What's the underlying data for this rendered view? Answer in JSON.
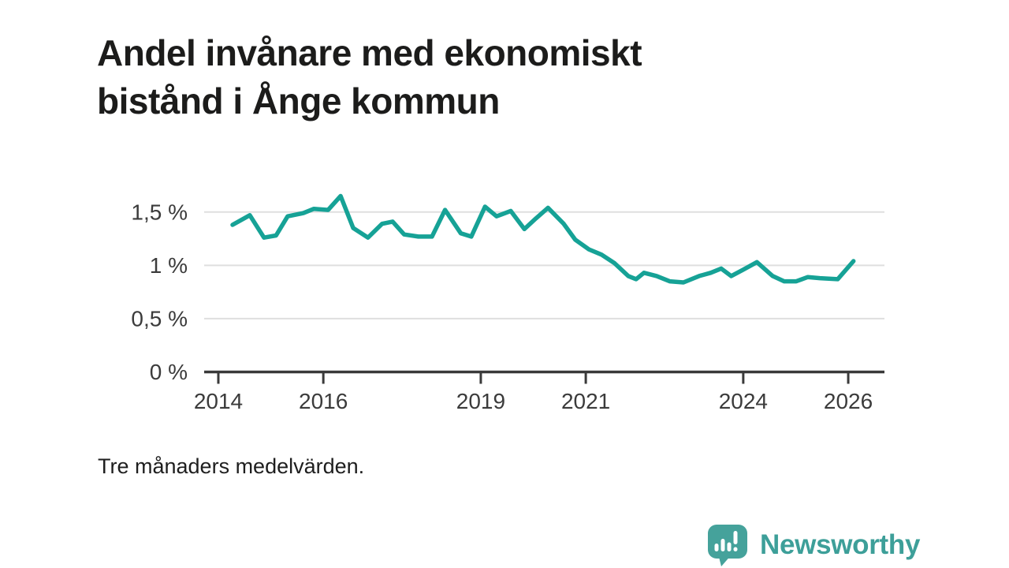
{
  "page": {
    "background": "#ffffff"
  },
  "header": {
    "title_lines": [
      "Andel invånare med ekonomiskt",
      "bistånd i Ånge kommun"
    ]
  },
  "footnote": "Tre månaders medelvärden.",
  "branding": {
    "name": "Newsworthy",
    "logo_icon": "newsworthy-speech-bubble-bar-chart-icon",
    "icon_color": "#45a29b",
    "text_color": "#3d9f99"
  },
  "colors": {
    "line": "#16a296",
    "grid": "#dfdfdf",
    "axis": "#3a3a3a",
    "tick_label": "#3b3b3b",
    "title": "#1c1c1b"
  },
  "chart_data": {
    "type": "line",
    "title": "Andel invånare med ekonomiskt bistånd i Ånge kommun",
    "note": "Tre månaders medelvärden.",
    "unit": "%",
    "grid": "horizontal",
    "legend": "none",
    "xlim": [
      2013.73,
      2026.69
    ],
    "ylim": [
      0,
      1.75
    ],
    "x_ticks": [
      {
        "year": 2014,
        "label": "2014"
      },
      {
        "year": 2016,
        "label": "2016"
      },
      {
        "year": 2019,
        "label": "2019"
      },
      {
        "year": 2021,
        "label": "2021"
      },
      {
        "year": 2024,
        "label": "2024"
      },
      {
        "year": 2026,
        "label": "2026"
      }
    ],
    "y_ticks": [
      {
        "value": 0,
        "label": "0 %"
      },
      {
        "value": 0.5,
        "label": "0,5 %"
      },
      {
        "value": 1,
        "label": "1 %"
      },
      {
        "value": 1.5,
        "label": "1,5 %"
      }
    ],
    "x": [
      2014.27,
      2014.6,
      2014.87,
      2015.1,
      2015.32,
      2015.62,
      2015.82,
      2016.09,
      2016.33,
      2016.57,
      2016.85,
      2017.12,
      2017.32,
      2017.54,
      2017.81,
      2018.07,
      2018.32,
      2018.62,
      2018.82,
      2019.08,
      2019.3,
      2019.57,
      2019.83,
      2020.05,
      2020.28,
      2020.58,
      2020.8,
      2021.06,
      2021.3,
      2021.55,
      2021.81,
      2021.96,
      2022.11,
      2022.35,
      2022.6,
      2022.86,
      2023.16,
      2023.38,
      2023.58,
      2023.77,
      2024.0,
      2024.26,
      2024.56,
      2024.78,
      2025.01,
      2025.23,
      2025.46,
      2025.8,
      2026.1
    ],
    "series": [
      {
        "name": "Andel invånare med ekonomiskt bistånd, Ånge kommun",
        "color": "#16a296",
        "values": [
          1.38,
          1.47,
          1.26,
          1.28,
          1.46,
          1.49,
          1.53,
          1.52,
          1.65,
          1.35,
          1.26,
          1.39,
          1.41,
          1.29,
          1.27,
          1.27,
          1.52,
          1.3,
          1.27,
          1.55,
          1.46,
          1.51,
          1.34,
          1.44,
          1.54,
          1.39,
          1.24,
          1.15,
          1.1,
          1.02,
          0.9,
          0.87,
          0.93,
          0.9,
          0.85,
          0.84,
          0.9,
          0.93,
          0.97,
          0.9,
          0.96,
          1.03,
          0.9,
          0.85,
          0.85,
          0.89,
          0.88,
          0.87,
          1.04
        ]
      }
    ]
  }
}
